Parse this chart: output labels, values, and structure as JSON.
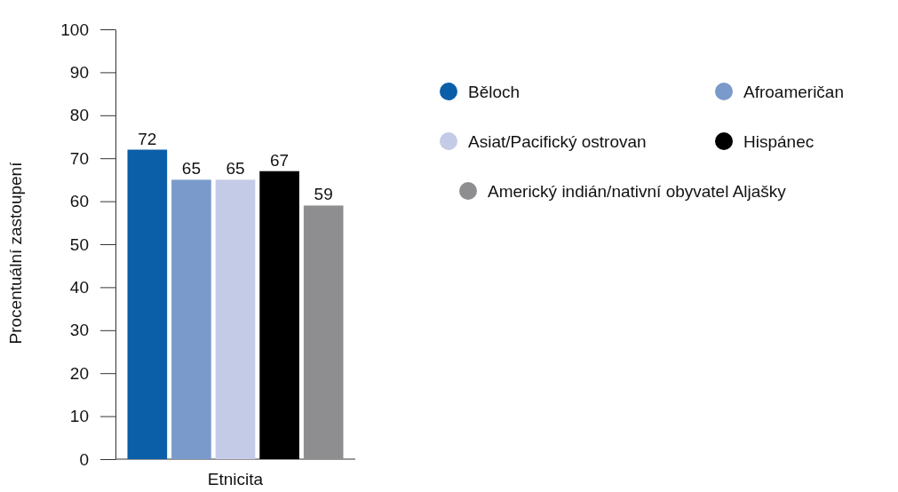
{
  "chart_data": {
    "type": "bar",
    "xlabel": "Etnicita",
    "ylabel": "Procentuální zastoupení",
    "categories": [
      null
    ],
    "series": [
      {
        "name": "Běloch",
        "color": "#0b5ea8",
        "values": [
          72
        ]
      },
      {
        "name": "Afroameričan",
        "color": "#7a9acb",
        "values": [
          65
        ]
      },
      {
        "name": "Asiat/Pacifický ostrovan",
        "color": "#c4cbe6",
        "values": [
          65
        ]
      },
      {
        "name": "Hispánec",
        "color": "#000000",
        "values": [
          67
        ]
      },
      {
        "name": "Americký indián/nativní obyvatel Aljašky",
        "color": "#8e8e90",
        "values": [
          59
        ]
      }
    ],
    "ylim": [
      0,
      100
    ],
    "yticks": [
      0,
      10,
      20,
      30,
      40,
      50,
      60,
      70,
      80,
      90,
      100
    ],
    "data_labels": true,
    "legend": "right",
    "grid": false
  }
}
